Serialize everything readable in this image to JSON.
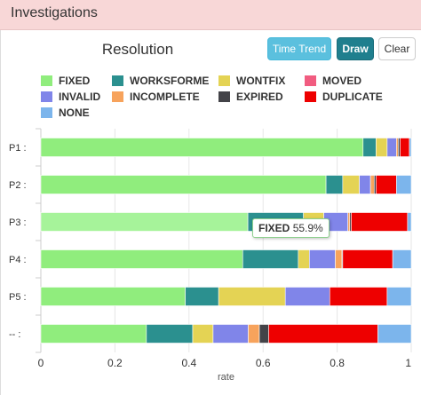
{
  "panel": {
    "title": "Investigations"
  },
  "buttons": {
    "time_trend": "Time Trend",
    "draw": "Draw",
    "clear": "Clear"
  },
  "tooltip": {
    "label": "FIXED",
    "value": "55.9%"
  },
  "chart_data": {
    "type": "bar",
    "orientation": "horizontal",
    "stacked": true,
    "title": "Resolution",
    "xlabel": "rate",
    "ylabel": "",
    "xlim": [
      0,
      1
    ],
    "xticks": [
      "0",
      "0.2",
      "0.4",
      "0.6",
      "0.8",
      "1"
    ],
    "categories": [
      "P1 :",
      "P2 :",
      "P3 :",
      "P4 :",
      "P5 :",
      "-- :"
    ],
    "legend_position": "top",
    "series": [
      {
        "name": "FIXED",
        "color": "#90ed7d",
        "values": [
          0.87,
          0.77,
          0.559,
          0.545,
          0.39,
          0.285
        ]
      },
      {
        "name": "WORKSFORME",
        "color": "#2b908f",
        "values": [
          0.035,
          0.045,
          0.15,
          0.15,
          0.09,
          0.125
        ]
      },
      {
        "name": "WONTFIX",
        "color": "#e4d354",
        "values": [
          0.03,
          0.045,
          0.055,
          0.03,
          0.18,
          0.055
        ]
      },
      {
        "name": "MOVED",
        "color": "#f15c80",
        "values": [
          0.0,
          0.0,
          0.0,
          0.0,
          0.0,
          0.0
        ]
      },
      {
        "name": "INVALID",
        "color": "#8085e9",
        "values": [
          0.025,
          0.03,
          0.065,
          0.07,
          0.12,
          0.095
        ]
      },
      {
        "name": "INCOMPLETE",
        "color": "#f7a35c",
        "values": [
          0.005,
          0.01,
          0.005,
          0.018,
          0.0,
          0.03
        ]
      },
      {
        "name": "EXPIRED",
        "color": "#434348",
        "values": [
          0.005,
          0.005,
          0.004,
          0.002,
          0.0,
          0.025
        ]
      },
      {
        "name": "DUPLICATE",
        "color": "#ee0000",
        "values": [
          0.025,
          0.055,
          0.152,
          0.135,
          0.155,
          0.295
        ]
      },
      {
        "name": "NONE",
        "color": "#7cb5ec",
        "values": [
          0.005,
          0.04,
          0.01,
          0.05,
          0.065,
          0.09
        ]
      }
    ]
  }
}
